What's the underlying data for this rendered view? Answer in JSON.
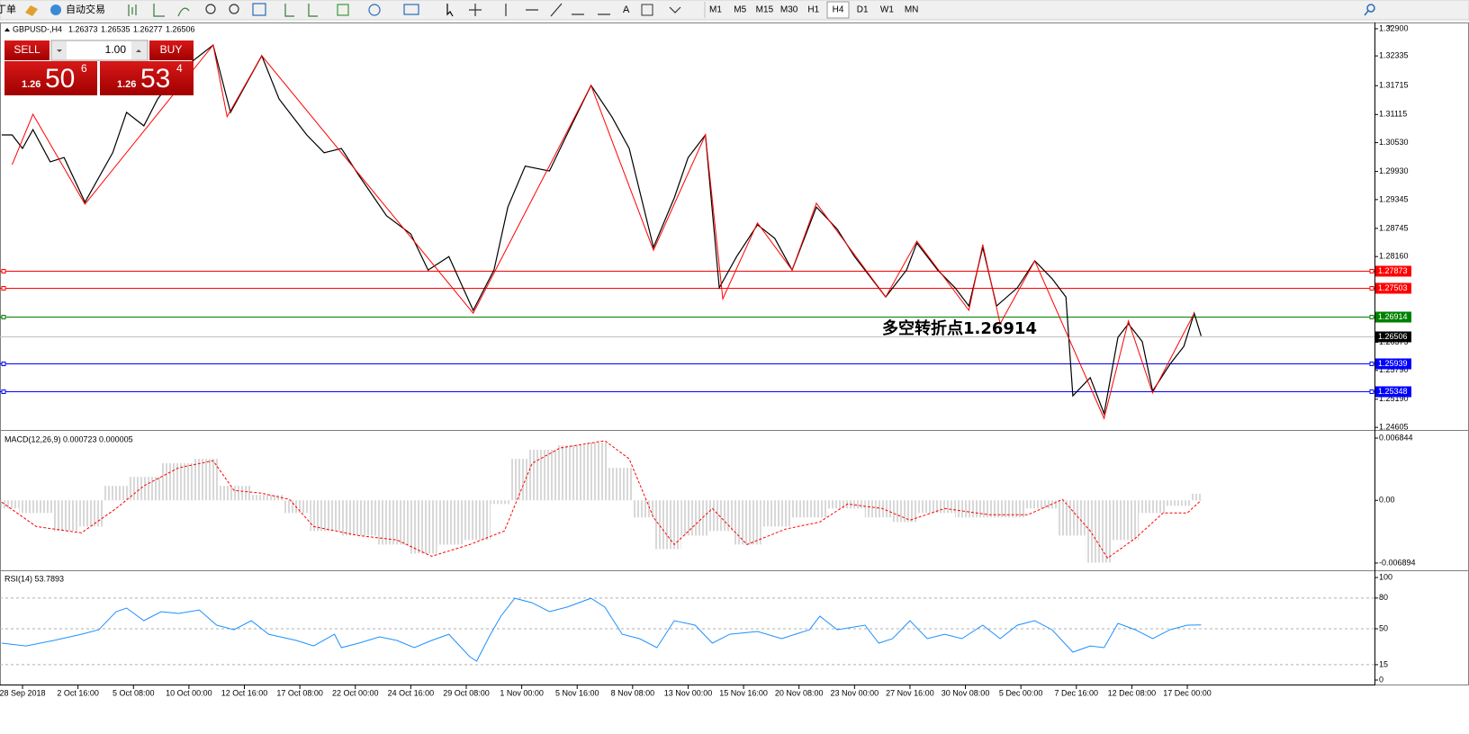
{
  "toolbar": {
    "buttons": [
      "丁单",
      "自动交易"
    ],
    "timeframes": [
      "M1",
      "M5",
      "M15",
      "M30",
      "H1",
      "H4",
      "D1",
      "W1",
      "MN"
    ],
    "active_timeframe": "H4"
  },
  "trade_panel": {
    "sell": "SELL",
    "buy": "BUY",
    "lot": "1.00",
    "bid": {
      "big": "1.26",
      "pips": "50",
      "frac": "6"
    },
    "ask": {
      "big": "1.26",
      "pips": "53",
      "frac": "4"
    }
  },
  "chart_data": [
    {
      "type": "line",
      "symbol": "GBPUSD-,H4",
      "ohlc": [
        1.26373,
        1.26535,
        1.26277,
        1.26506
      ],
      "xlim": [
        -6.5,
        390
      ],
      "xticks": [
        {
          "value": 0,
          "label": "28 Sep 2018"
        },
        {
          "value": 16,
          "label": "2 Oct 16:00"
        },
        {
          "value": 32,
          "label": "5 Oct 08:00"
        },
        {
          "value": 48,
          "label": "10 Oct 00:00"
        },
        {
          "value": 64,
          "label": "12 Oct 16:00"
        },
        {
          "value": 80,
          "label": "17 Oct 08:00"
        },
        {
          "value": 96,
          "label": "22 Oct 00:00"
        },
        {
          "value": 112,
          "label": "24 Oct 16:00"
        },
        {
          "value": 128,
          "label": "29 Oct 08:00"
        },
        {
          "value": 144,
          "label": "1 Nov 00:00"
        },
        {
          "value": 160,
          "label": "5 Nov 16:00"
        },
        {
          "value": 176,
          "label": "8 Nov 08:00"
        },
        {
          "value": 192,
          "label": "13 Nov 00:00"
        },
        {
          "value": 208,
          "label": "15 Nov 16:00"
        },
        {
          "value": 224,
          "label": "20 Nov 08:00"
        },
        {
          "value": 240,
          "label": "23 Nov 00:00"
        },
        {
          "value": 256,
          "label": "27 Nov 16:00"
        },
        {
          "value": 272,
          "label": "30 Nov 08:00"
        },
        {
          "value": 288,
          "label": "5 Dec 00:00"
        },
        {
          "value": 304,
          "label": "7 Dec 16:00"
        },
        {
          "value": 320,
          "label": "12 Dec 08:00"
        },
        {
          "value": 336,
          "label": "17 Dec 00:00"
        }
      ],
      "ylim": [
        1.2457,
        1.3303
      ],
      "yticks": [
        {
          "value": 1.329,
          "label": "1.32900"
        },
        1.32335,
        1.31715,
        1.31115,
        {
          "value": 1.3053,
          "label": "1.30530"
        },
        {
          "value": 1.2993,
          "label": "1.29930"
        },
        1.29345,
        1.28745,
        {
          "value": 1.2816,
          "label": "1.28160"
        },
        1.26375,
        {
          "value": 1.2579,
          "label": "1.25790"
        },
        {
          "value": 1.2519,
          "label": "1.25190"
        },
        1.24605
      ],
      "series": [
        {
          "color": "#000000",
          "x": [
            -6,
            -3,
            0,
            3,
            8,
            12,
            18,
            26,
            30,
            35,
            39,
            45,
            55,
            60,
            69,
            74,
            82,
            87,
            92,
            97,
            105,
            112,
            117,
            123,
            130,
            136,
            140,
            145,
            152,
            157,
            164,
            170,
            175,
            182,
            188,
            192,
            197,
            201,
            206,
            212,
            217,
            222,
            229,
            235,
            240,
            249,
            255,
            258,
            264,
            269,
            273,
            277,
            281,
            287,
            292,
            297,
            301,
            303,
            308,
            312,
            316,
            319,
            323,
            326,
            331,
            335,
            338,
            340
          ],
          "values": [
            1.3069,
            1.3069,
            1.3041,
            1.308,
            1.3013,
            1.3022,
            1.2929,
            1.3032,
            1.3116,
            1.3088,
            1.3144,
            1.32,
            1.3256,
            1.3116,
            1.3234,
            1.3144,
            1.3069,
            1.3032,
            1.3041,
            1.2985,
            1.2901,
            1.2863,
            1.2788,
            1.2816,
            1.2704,
            1.2788,
            1.2919,
            1.3004,
            1.2994,
            1.3069,
            1.3172,
            1.3107,
            1.3041,
            1.2835,
            1.2938,
            1.3022,
            1.3069,
            1.2751,
            1.2816,
            1.2882,
            1.2854,
            1.2788,
            1.2919,
            1.2873,
            1.2816,
            1.2732,
            1.2788,
            1.2844,
            1.2788,
            1.2751,
            1.2713,
            1.2835,
            1.2713,
            1.2751,
            1.2807,
            1.277,
            1.2732,
            1.2526,
            1.2564,
            1.2489,
            1.2648,
            1.2676,
            1.2639,
            1.2536,
            1.2592,
            1.2629,
            1.2698,
            1.26506
          ]
        },
        {
          "color": "#ff0000",
          "x": [
            -3,
            3,
            18,
            55,
            59,
            69,
            130,
            164,
            182,
            197,
            202,
            212,
            222,
            229,
            249,
            258,
            273,
            277,
            282,
            292,
            312,
            319,
            326,
            338
          ],
          "values": [
            1.3007,
            1.3112,
            1.2925,
            1.3256,
            1.3107,
            1.3234,
            1.2698,
            1.3172,
            1.2829,
            1.3069,
            1.2728,
            1.2886,
            1.2788,
            1.2927,
            1.2732,
            1.2848,
            1.2704,
            1.2841,
            1.2676,
            1.2807,
            1.2479,
            1.2682,
            1.2532,
            1.2698
          ]
        }
      ],
      "levels": [
        {
          "value": 1.27873,
          "color": "#ff0000"
        },
        {
          "value": 1.27503,
          "color": "#ff0000"
        },
        {
          "value": 1.26914,
          "color": "#008000"
        },
        {
          "value": 1.26506,
          "color": "#000000"
        },
        {
          "value": 1.25939,
          "color": "#0000ff"
        },
        {
          "value": 1.25348,
          "color": "#0000ff"
        }
      ],
      "annotation": {
        "text": "多空转折点1.26914",
        "color": "#22cc22"
      }
    },
    {
      "type": "bar",
      "title": "MACD(12,26,9) 0.000723 0.000005",
      "color": "#b0b0b0",
      "xlim": [
        -6.5,
        390
      ],
      "ylim": [
        -0.00749,
        0.00754
      ],
      "yticks": [
        0.006844,
        {
          "value": 0,
          "label": "0.00"
        },
        -0.006894
      ],
      "x": [
        -6,
        4,
        14,
        19,
        27,
        35,
        45,
        53,
        61,
        71,
        79,
        87,
        97,
        108,
        116,
        123,
        131,
        139,
        143,
        149,
        160,
        165,
        173,
        179,
        186,
        194,
        201,
        209,
        217,
        227,
        238,
        248,
        253,
        264,
        274,
        284,
        295,
        303,
        310,
        318,
        326,
        334,
        340
      ],
      "values": [
        -0.00089,
        -0.00139,
        -0.00337,
        -0.00288,
        0.00159,
        0.00258,
        0.00407,
        0.00456,
        0.00159,
        0.0006,
        -0.00139,
        -0.00337,
        -0.00387,
        -0.00486,
        -0.00585,
        -0.00486,
        -0.00436,
        -0.0004,
        0.00456,
        0.00556,
        0.00605,
        0.00635,
        0.00357,
        -0.00188,
        -0.00536,
        -0.00387,
        -0.00337,
        -0.00486,
        -0.00288,
        -0.00188,
        -0.00089,
        -0.00188,
        -0.00238,
        -0.00139,
        -0.00188,
        -0.00188,
        -0.00089,
        -0.00387,
        -0.00684,
        -0.00436,
        -0.00139,
        -0.0006,
        0.000723
      ],
      "signal": {
        "color": "#ff0000",
        "x": [
          -6,
          4,
          17,
          27,
          35,
          45,
          55,
          61,
          69,
          77,
          84,
          97,
          108,
          118,
          129,
          139,
          147,
          155,
          168,
          175,
          182,
          188,
          199,
          209,
          220,
          230,
          238,
          248,
          256,
          266,
          279,
          290,
          300,
          308,
          313,
          321,
          329,
          336,
          340
        ],
        "values": [
          -0.0002,
          -0.00288,
          -0.00357,
          -0.00089,
          0.00159,
          0.00357,
          0.00436,
          0.00109,
          0.00079,
          0.0001,
          -0.00288,
          -0.00387,
          -0.00436,
          -0.00615,
          -0.00486,
          -0.00337,
          0.00407,
          0.00575,
          0.00655,
          0.00456,
          -0.00188,
          -0.00486,
          -0.00089,
          -0.00486,
          -0.00317,
          -0.00238,
          -0.0004,
          -0.00089,
          -0.00218,
          -0.00089,
          -0.00159,
          -0.00159,
          0.0001,
          -0.00337,
          -0.00635,
          -0.00417,
          -0.00139,
          -0.00139,
          5e-06
        ]
      }
    },
    {
      "type": "line",
      "title": "RSI(14) 53.7893",
      "color": "#1e90ff",
      "xlim": [
        -6.5,
        390
      ],
      "ylim": [
        -3.5,
        105.3
      ],
      "yticks": [
        100,
        80,
        50,
        15,
        0
      ],
      "x": [
        -6,
        1,
        9,
        17,
        22,
        27,
        30,
        35,
        40,
        45,
        51,
        56,
        61,
        66,
        71,
        79,
        84,
        90,
        92,
        97,
        103,
        108,
        113,
        118,
        123,
        129,
        131,
        135,
        138,
        142,
        147,
        152,
        157,
        164,
        168,
        173,
        178,
        183,
        188,
        194,
        199,
        204,
        212,
        219,
        227,
        230,
        235,
        243,
        247,
        251,
        256,
        261,
        266,
        271,
        277,
        282,
        287,
        292,
        297,
        303,
        308,
        312,
        316,
        321,
        326,
        331,
        336,
        340
      ],
      "values": [
        36,
        33.3,
        38.6,
        44.7,
        49.1,
        66.7,
        70.2,
        57.9,
        66.7,
        64.9,
        68.4,
        53.5,
        49.1,
        57.9,
        44.7,
        38.6,
        33.3,
        44.7,
        31.6,
        36,
        42.1,
        38.6,
        31.6,
        38.6,
        44.7,
        22.8,
        18.4,
        44.7,
        62.3,
        79.8,
        75.4,
        66.7,
        71.1,
        79.8,
        71.1,
        44.7,
        40.4,
        31.6,
        57.9,
        53.5,
        36,
        44.7,
        47.4,
        40.4,
        49.1,
        62.3,
        49.1,
        53.5,
        36,
        40.4,
        57.9,
        40.4,
        44.7,
        40.4,
        53.5,
        40.4,
        53.5,
        57.9,
        49.1,
        27.2,
        33.3,
        31.6,
        55.3,
        49.1,
        40.4,
        49.1,
        53.5,
        53.7893
      ]
    }
  ]
}
